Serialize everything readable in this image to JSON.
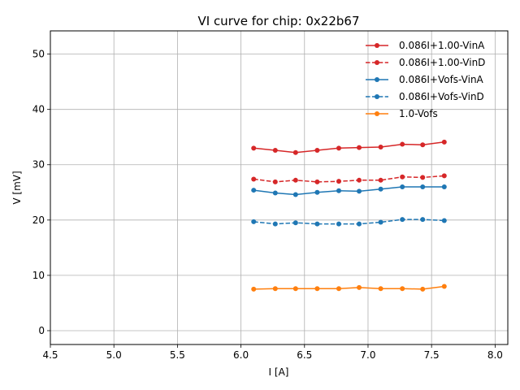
{
  "chart_data": {
    "type": "line",
    "title": "VI curve for chip: 0x22b67",
    "xlabel": "I [A]",
    "ylabel": "V [mV]",
    "xlim": [
      4.5,
      8.1
    ],
    "ylim": [
      -2.5,
      54.2
    ],
    "xticks": [
      4.5,
      5.0,
      5.5,
      6.0,
      6.5,
      7.0,
      7.5,
      8.0
    ],
    "xtick_labels": [
      "4.5",
      "5.0",
      "5.5",
      "6.0",
      "6.5",
      "7.0",
      "7.5",
      "8.0"
    ],
    "yticks": [
      0,
      10,
      20,
      30,
      40,
      50
    ],
    "ytick_labels": [
      "0",
      "10",
      "20",
      "30",
      "40",
      "50"
    ],
    "grid": true,
    "legend_position": "top-right",
    "x": [
      6.1,
      6.27,
      6.43,
      6.6,
      6.77,
      6.93,
      7.1,
      7.27,
      7.43,
      7.6
    ],
    "series": [
      {
        "name": "0.086I+1.00-VinA",
        "color": "#d62728",
        "dash": "solid",
        "values": [
          33.0,
          32.6,
          32.2,
          32.6,
          33.0,
          33.1,
          33.2,
          33.7,
          33.6,
          34.1
        ]
      },
      {
        "name": "0.086I+1.00-VinD",
        "color": "#d62728",
        "dash": "dashed",
        "values": [
          27.4,
          26.9,
          27.2,
          26.9,
          27.0,
          27.2,
          27.2,
          27.8,
          27.7,
          28.0
        ]
      },
      {
        "name": "0.086I+Vofs-VinA",
        "color": "#1f77b4",
        "dash": "solid",
        "values": [
          25.4,
          24.9,
          24.6,
          25.0,
          25.3,
          25.2,
          25.6,
          26.0,
          26.0,
          26.0
        ]
      },
      {
        "name": "0.086I+Vofs-VinD",
        "color": "#1f77b4",
        "dash": "dashed",
        "values": [
          19.7,
          19.3,
          19.5,
          19.3,
          19.3,
          19.3,
          19.6,
          20.1,
          20.1,
          19.9
        ]
      },
      {
        "name": "1.0-Vofs",
        "color": "#ff7f0e",
        "dash": "solid",
        "values": [
          7.5,
          7.6,
          7.6,
          7.6,
          7.6,
          7.8,
          7.6,
          7.6,
          7.5,
          8.0
        ]
      }
    ]
  }
}
